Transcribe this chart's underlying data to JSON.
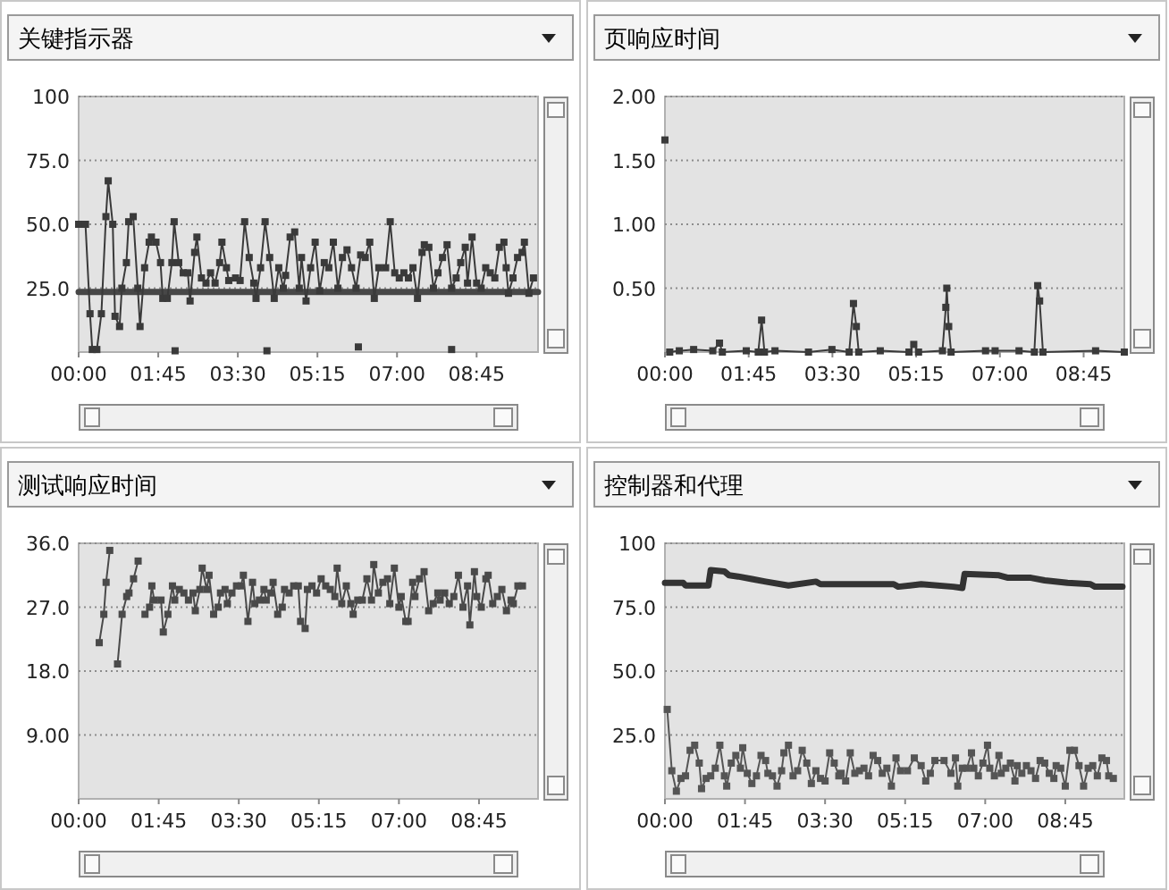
{
  "chart_data": [
    {
      "type": "line",
      "title": "关键指示器",
      "xlim": [
        0,
        10.1
      ],
      "ylim": [
        0,
        100
      ],
      "grid": "y",
      "xticks": [
        {
          "value": 0,
          "label": "00:00"
        },
        {
          "value": 1.75,
          "label": "01:45"
        },
        {
          "value": 3.5,
          "label": "03:30"
        },
        {
          "value": 5.25,
          "label": "05:15"
        },
        {
          "value": 7,
          "label": "07:00"
        },
        {
          "value": 8.75,
          "label": "08:45"
        }
      ],
      "yticks": [
        {
          "value": 25,
          "label": "25.0"
        },
        {
          "value": 50,
          "label": "50.0"
        },
        {
          "value": 75,
          "label": "75.0"
        },
        100
      ],
      "series": [
        {
          "type": "line",
          "color": "#474747",
          "marker": "none",
          "x": [
            0,
            10.1
          ],
          "values": [
            23.5,
            23.5
          ]
        },
        {
          "type": "line",
          "color": "#3a3a3a",
          "marker": "square",
          "x": [
            0.0,
            0.15,
            0.25,
            0.3,
            0.4,
            0.5,
            0.6,
            0.65,
            0.75,
            0.8,
            0.9,
            0.95,
            1.05,
            1.1,
            1.2,
            1.3,
            1.35,
            1.45,
            1.55,
            1.6,
            1.7,
            1.8,
            1.85,
            1.95,
            2.05,
            2.1,
            2.2,
            2.3,
            2.4,
            2.45,
            2.55,
            2.6,
            2.7,
            2.8,
            2.9,
            3.0,
            3.1,
            3.15,
            3.25,
            3.3,
            3.45,
            3.55,
            3.65,
            3.75,
            3.85,
            3.9,
            4.0,
            4.1,
            4.2,
            4.3,
            4.4,
            4.5,
            4.55,
            4.65,
            4.75,
            4.85,
            4.9,
            5.0,
            5.1,
            5.2,
            5.3,
            5.4,
            5.5,
            5.6,
            5.7,
            5.8,
            5.9,
            6.0,
            6.1,
            6.2,
            6.3,
            6.4,
            6.5,
            6.6,
            6.75,
            6.85,
            6.95,
            7.05,
            7.15,
            7.25,
            7.35,
            7.45,
            7.55,
            7.6,
            7.7,
            7.8,
            7.9,
            8.0,
            8.1,
            8.2,
            8.3,
            8.4,
            8.5,
            8.55,
            8.65,
            8.75,
            8.85,
            8.95,
            9.05,
            9.15,
            9.25,
            9.35,
            9.4,
            9.45,
            9.55,
            9.65,
            9.75,
            9.8,
            9.9,
            10.0
          ],
          "values": [
            50,
            50,
            15,
            1,
            1,
            15,
            53,
            67,
            50,
            14,
            10,
            25,
            35,
            51,
            53,
            25,
            10,
            33,
            43,
            45,
            43,
            35,
            21,
            21,
            35,
            51,
            35,
            31,
            31,
            20,
            39,
            45,
            29,
            27,
            31,
            27,
            35,
            43,
            33,
            28,
            29,
            28,
            51,
            37,
            27,
            21,
            33,
            51,
            37,
            21,
            33,
            25,
            30,
            45,
            47,
            25,
            37,
            20,
            33,
            43,
            24,
            35,
            33,
            43,
            25,
            37,
            40,
            33,
            25,
            38,
            37,
            43,
            21,
            33,
            33,
            51,
            31,
            29,
            31,
            29,
            33,
            21,
            39,
            42,
            41,
            25,
            31,
            37,
            42,
            25,
            29,
            35,
            41,
            27,
            45,
            27,
            25,
            33,
            31,
            29,
            41,
            43,
            33,
            23,
            29,
            37,
            39,
            43,
            23,
            29
          ]
        },
        {
          "type": "scatter",
          "color": "#3a3a3a",
          "marker": "square",
          "x": [
            2.12,
            4.14,
            6.15,
            8.2
          ],
          "values": [
            0.5,
            0.5,
            2,
            1
          ]
        }
      ]
    },
    {
      "type": "line",
      "title": "页响应时间",
      "xlim": [
        0,
        9.6
      ],
      "ylim": [
        0,
        2
      ],
      "grid": "y",
      "xticks": [
        {
          "value": 0,
          "label": "00:00"
        },
        {
          "value": 1.75,
          "label": "01:45"
        },
        {
          "value": 3.5,
          "label": "03:30"
        },
        {
          "value": 5.25,
          "label": "05:15"
        },
        {
          "value": 7,
          "label": "07:00"
        },
        {
          "value": 8.75,
          "label": "08:45"
        }
      ],
      "yticks": [
        {
          "value": 0.5,
          "label": "0.50"
        },
        {
          "value": 1,
          "label": "1.00"
        },
        {
          "value": 1.5,
          "label": "1.50"
        },
        {
          "value": 2,
          "label": "2.00"
        }
      ],
      "series": [
        {
          "type": "scatter",
          "color": "#3a3a3a",
          "marker": "square",
          "x": [
            0
          ],
          "values": [
            1.66
          ]
        },
        {
          "type": "line",
          "color": "#3a3a3a",
          "marker": "square",
          "x": [
            0.1,
            0.3,
            0.6,
            1.0,
            1.14,
            1.2,
            1.7,
            1.95,
            2.02,
            2.08,
            2.3,
            3.0,
            3.49,
            3.85,
            3.94,
            4.0,
            4.05,
            4.5,
            5.1,
            5.2,
            5.3,
            5.8,
            5.87,
            5.89,
            5.93,
            5.98,
            6.7,
            6.9,
            7.4,
            7.72,
            7.79,
            7.83,
            7.9,
            9.0,
            9.6
          ],
          "values": [
            0,
            0.01,
            0.02,
            0.01,
            0.07,
            0,
            0.01,
            0,
            0.25,
            0,
            0.01,
            0,
            0.02,
            0,
            0.38,
            0.2,
            0,
            0.01,
            0,
            0.06,
            0,
            0.01,
            0.35,
            0.5,
            0.2,
            0,
            0.01,
            0.01,
            0.01,
            0,
            0.52,
            0.4,
            0,
            0.01,
            0
          ]
        }
      ]
    },
    {
      "type": "line",
      "title": "测试响应时间",
      "xlim": [
        0,
        10.04
      ],
      "ylim": [
        0,
        36
      ],
      "grid": "y",
      "xticks": [
        {
          "value": 0,
          "label": "00:00"
        },
        {
          "value": 1.75,
          "label": "01:45"
        },
        {
          "value": 3.5,
          "label": "03:30"
        },
        {
          "value": 5.25,
          "label": "05:15"
        },
        {
          "value": 7,
          "label": "07:00"
        },
        {
          "value": 8.75,
          "label": "08:45"
        }
      ],
      "yticks": [
        {
          "value": 9,
          "label": "9.00"
        },
        {
          "value": 18,
          "label": "18.0"
        },
        {
          "value": 27,
          "label": "27.0"
        },
        {
          "value": 36,
          "label": "36.0"
        }
      ],
      "series": [
        {
          "type": "line",
          "color": "#4a4a4a",
          "marker": "square",
          "x": [
            0.45,
            0.55,
            0.6,
            0.68
          ],
          "values": [
            22,
            26,
            30.5,
            35
          ]
        },
        {
          "type": "line",
          "color": "#4a4a4a",
          "marker": "square",
          "x": [
            0.85,
            0.95,
            1.05,
            1.1,
            1.2,
            1.3
          ],
          "values": [
            19,
            26,
            28.5,
            29,
            31,
            33.5
          ]
        },
        {
          "type": "line",
          "color": "#4a4a4a",
          "marker": "square",
          "x": [
            1.45,
            1.55,
            1.6,
            1.65,
            1.8,
            1.85,
            1.95,
            2.05,
            2.1,
            2.2,
            2.3,
            2.4,
            2.5,
            2.55,
            2.65,
            2.7,
            2.8,
            2.85,
            2.95,
            3.05,
            3.1,
            3.2,
            3.25,
            3.35,
            3.45,
            3.55,
            3.6,
            3.7,
            3.8,
            3.85,
            3.95,
            4.05,
            4.1,
            4.2,
            4.25,
            4.35,
            4.45,
            4.5,
            4.6,
            4.7,
            4.8,
            4.85,
            4.95,
            5.0,
            5.1,
            5.2,
            5.3,
            5.4,
            5.5,
            5.6,
            5.65,
            5.75,
            5.85,
            5.95,
            6.0,
            6.1,
            6.2,
            6.3,
            6.4,
            6.45,
            6.55,
            6.65,
            6.75,
            6.8,
            6.9,
            7.0,
            7.05,
            7.15,
            7.2,
            7.3,
            7.35,
            7.45,
            7.55,
            7.65,
            7.75,
            7.85,
            7.9,
            8.0,
            8.1,
            8.2,
            8.3,
            8.4,
            8.5,
            8.55,
            8.65,
            8.7,
            8.8,
            8.9,
            8.95,
            9.05,
            9.15,
            9.25,
            9.35,
            9.45,
            9.5,
            9.6,
            9.7
          ],
          "values": [
            26,
            27,
            30,
            28,
            28,
            23.5,
            26,
            30,
            28,
            29.5,
            29,
            28,
            29,
            26.5,
            29.5,
            32.5,
            29.5,
            31.5,
            26,
            27,
            29,
            29.5,
            27.5,
            29,
            30,
            30,
            31.5,
            25,
            30.5,
            27.5,
            28,
            29.5,
            28,
            29,
            30.5,
            26,
            27,
            29.5,
            29,
            30,
            30,
            25,
            24,
            29.5,
            30,
            29,
            31,
            30,
            29.5,
            28.5,
            32.5,
            27.5,
            30,
            27.5,
            26,
            28,
            28,
            31,
            28,
            33,
            29,
            30.5,
            31,
            27.5,
            32.5,
            27,
            28.5,
            25,
            25,
            30.5,
            28.5,
            31,
            32,
            26.5,
            27.5,
            29,
            28,
            29,
            27.5,
            28.5,
            31.5,
            27,
            30,
            24.5,
            32,
            28.5,
            27,
            31,
            31.5,
            27.5,
            28.5,
            29.5,
            26.5,
            28,
            27.5,
            30,
            30
          ]
        }
      ]
    },
    {
      "type": "line",
      "title": "控制器和代理",
      "xlim": [
        0,
        10.04
      ],
      "ylim": [
        0,
        100
      ],
      "grid": "y",
      "xticks": [
        {
          "value": 0,
          "label": "00:00"
        },
        {
          "value": 1.75,
          "label": "01:45"
        },
        {
          "value": 3.5,
          "label": "03:30"
        },
        {
          "value": 5.25,
          "label": "05:15"
        },
        {
          "value": 7,
          "label": "07:00"
        },
        {
          "value": 8.75,
          "label": "08:45"
        }
      ],
      "yticks": [
        {
          "value": 25,
          "label": "25.0"
        },
        {
          "value": 50,
          "label": "50.0"
        },
        {
          "value": 75,
          "label": "75.0"
        },
        100
      ],
      "series": [
        {
          "type": "line",
          "color": "#333333",
          "marker": "none",
          "x": [
            0,
            0.4,
            0.45,
            0.95,
            1.0,
            1.3,
            1.4,
            1.6,
            1.9,
            2.2,
            2.7,
            3.3,
            3.4,
            5.0,
            5.1,
            5.6,
            6.3,
            6.5,
            6.55,
            7.3,
            7.5,
            8.0,
            8.3,
            8.8,
            9.3,
            9.4,
            10.0
          ],
          "values": [
            84.5,
            84.5,
            83.5,
            83.5,
            89.5,
            89,
            87.5,
            87,
            86,
            85,
            83.5,
            85,
            84,
            84,
            83,
            84,
            83,
            82.5,
            88,
            87.5,
            86.5,
            86.5,
            85.5,
            84.5,
            84,
            83,
            83
          ]
        },
        {
          "type": "line",
          "color": "#555555",
          "marker": "square",
          "x": [
            0.05,
            0.15,
            0.25,
            0.35,
            0.45,
            0.55,
            0.65,
            0.75,
            0.8,
            0.9,
            1.0,
            1.1,
            1.2,
            1.3,
            1.35,
            1.45,
            1.55,
            1.65,
            1.7,
            1.8,
            1.9,
            2.0,
            2.1,
            2.2,
            2.25,
            2.35,
            2.45,
            2.55,
            2.6,
            2.7,
            2.8,
            2.9,
            3.0,
            3.1,
            3.2,
            3.3,
            3.4,
            3.5,
            3.6,
            3.7,
            3.8,
            3.85,
            3.95,
            4.05,
            4.15,
            4.25,
            4.35,
            4.45,
            4.55,
            4.65,
            4.75,
            4.85,
            4.95,
            5.05,
            5.15,
            5.3,
            5.45,
            5.6,
            5.7,
            5.8,
            5.9,
            6.1,
            6.25,
            6.35,
            6.4,
            6.5,
            6.6,
            6.7,
            6.75,
            6.85,
            6.95,
            7.05,
            7.1,
            7.2,
            7.3,
            7.35,
            7.45,
            7.55,
            7.65,
            7.7,
            7.8,
            7.9,
            8.0,
            8.1,
            8.2,
            8.3,
            8.4,
            8.5,
            8.55,
            8.65,
            8.75,
            8.85,
            8.95,
            9.05,
            9.15,
            9.25,
            9.35,
            9.45,
            9.55,
            9.65,
            9.7,
            9.8
          ],
          "values": [
            35,
            11,
            3,
            8,
            9,
            19,
            21,
            14,
            4,
            8,
            9,
            12,
            21,
            9,
            5,
            14,
            17,
            12,
            20,
            10,
            6,
            9,
            17,
            15,
            10,
            9,
            5,
            11,
            18,
            21,
            9,
            11,
            19,
            14,
            6,
            11,
            8,
            7,
            18,
            14,
            9,
            10,
            7,
            18,
            10,
            11,
            12,
            9,
            17,
            15,
            10,
            12,
            5,
            16,
            11,
            11,
            16,
            13,
            7,
            10,
            15,
            15,
            10,
            16,
            5,
            12,
            12,
            18,
            12,
            9,
            14,
            21,
            12,
            9,
            17,
            10,
            12,
            14,
            7,
            13,
            10,
            13,
            11,
            8,
            15,
            14,
            10,
            8,
            13,
            12,
            5,
            19,
            19,
            13,
            5,
            12,
            13,
            9,
            16,
            15,
            9,
            8
          ]
        }
      ]
    }
  ]
}
